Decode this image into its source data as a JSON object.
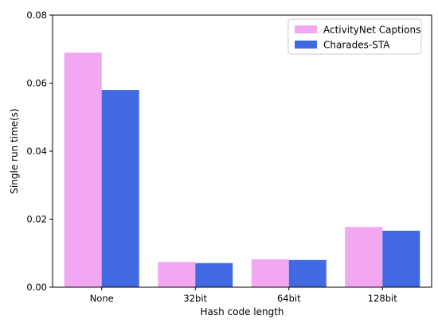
{
  "chart_data": {
    "type": "bar",
    "xlabel": "Hash code length",
    "ylabel": "Single run time(s)",
    "categories": [
      "None",
      "32bit",
      "64bit",
      "128bit"
    ],
    "ylim": [
      0,
      0.08
    ],
    "yticks": [
      "0.00",
      "0.02",
      "0.04",
      "0.06",
      "0.08"
    ],
    "grid": false,
    "legend_position": "top-right",
    "series": [
      {
        "name": "ActivityNet Captions",
        "color": "#F2A7F2",
        "values": [
          0.069,
          0.0074,
          0.0082,
          0.0177
        ]
      },
      {
        "name": "Charades-STA",
        "color": "#4169E1",
        "values": [
          0.058,
          0.0071,
          0.008,
          0.0166
        ]
      }
    ]
  }
}
